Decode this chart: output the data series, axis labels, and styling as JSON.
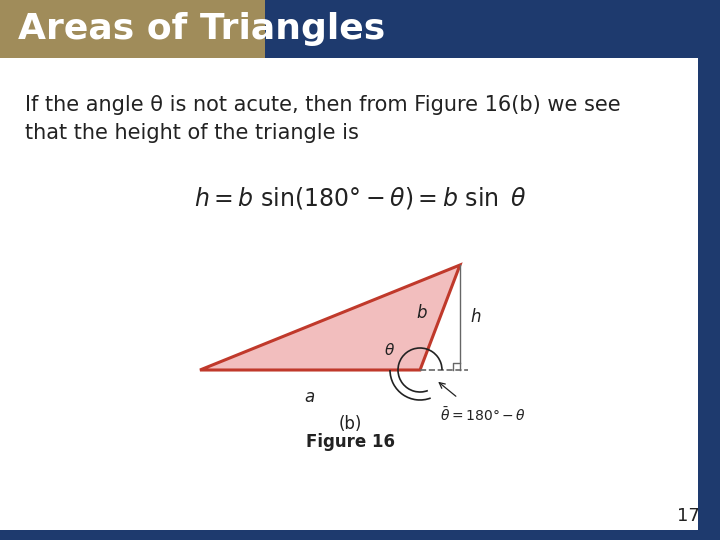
{
  "title": "Areas of Triangles",
  "title_bg_gold": "#A08C5A",
  "title_bg_blue": "#1E3A6E",
  "title_text_color": "#FFFFFF",
  "slide_bg": "#FFFFFF",
  "right_stripe_color": "#1E3A6E",
  "bottom_stripe_color": "#1E3A6E",
  "body_line1": "If the angle θ is not acute, then from Figure 16(b) we see",
  "body_line2": "that the height of the triangle is",
  "figure_label_b": "(b)",
  "figure_label": "Figure 16",
  "page_number": "17",
  "triangle_fill": "#F2BEBE",
  "triangle_edge": "#C0392B",
  "dashed_color": "#666666",
  "text_color": "#222222",
  "title_fontsize": 26,
  "body_fontsize": 15,
  "formula_fontsize": 17
}
